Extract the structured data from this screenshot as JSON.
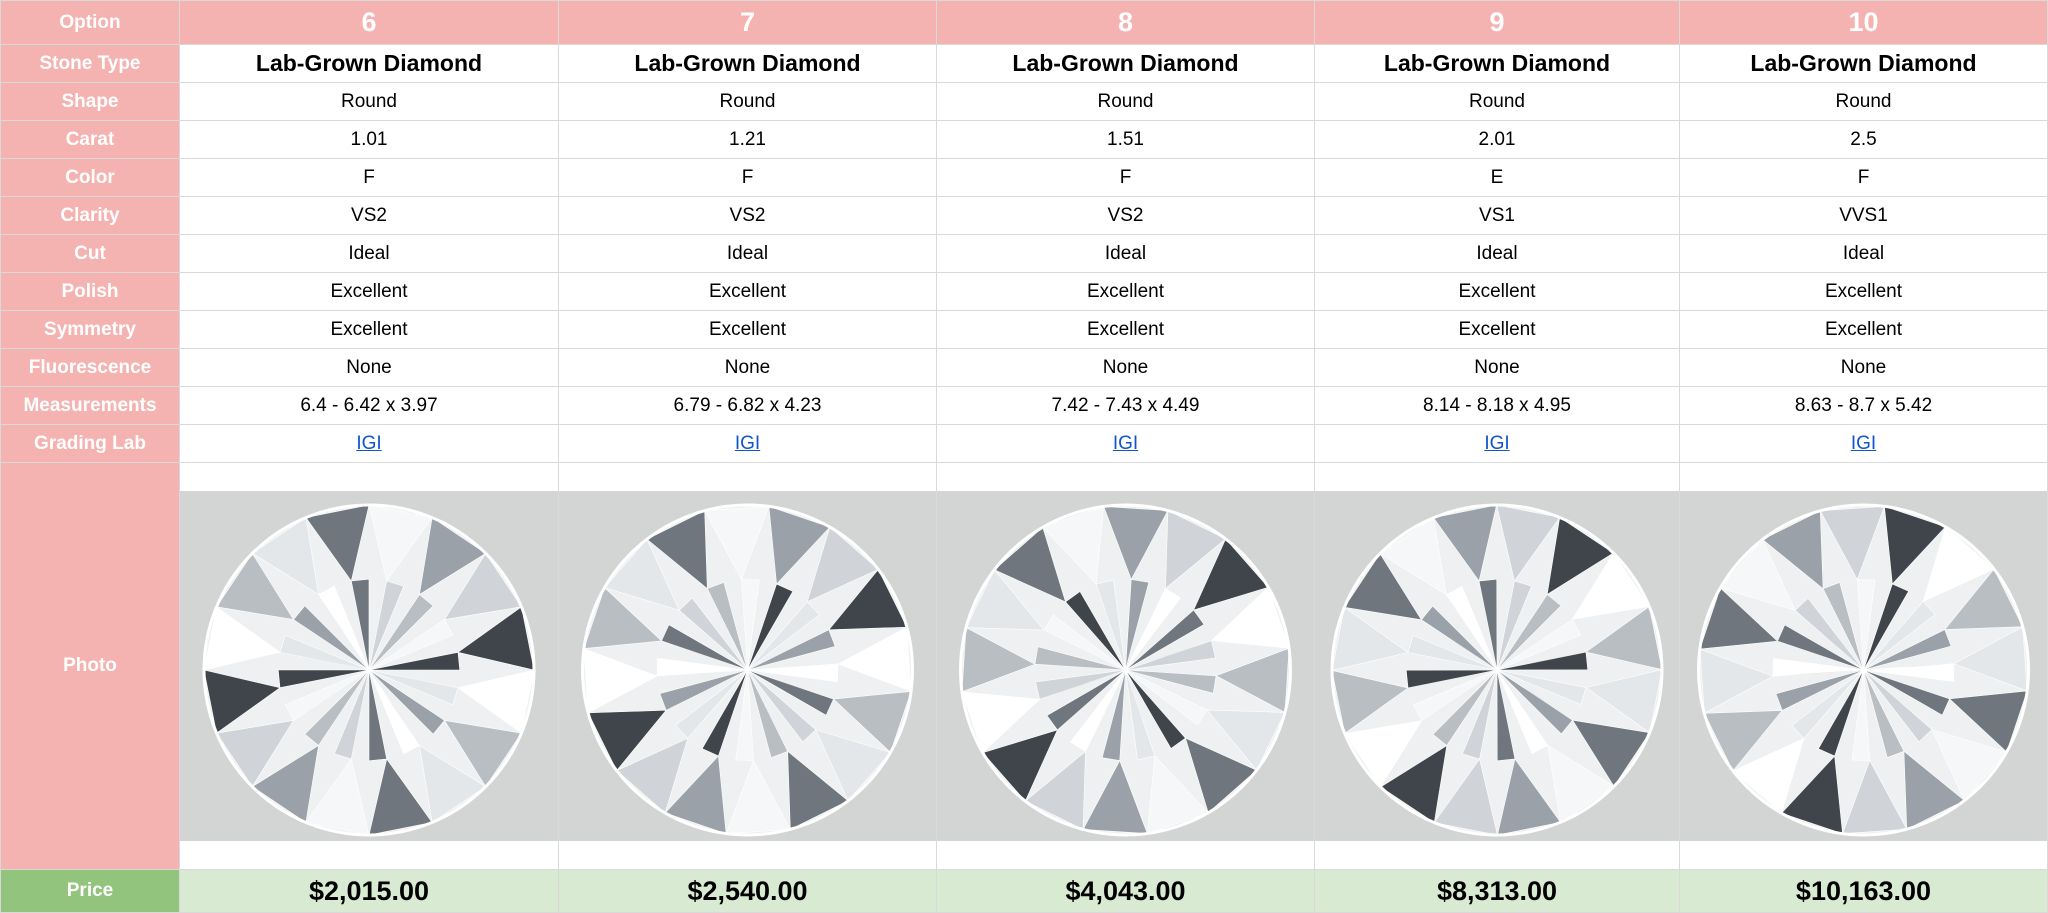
{
  "labels": {
    "option": "Option",
    "stone_type": "Stone Type",
    "shape": "Shape",
    "carat": "Carat",
    "color": "Color",
    "clarity": "Clarity",
    "cut": "Cut",
    "polish": "Polish",
    "symmetry": "Symmetry",
    "fluorescence": "Fluorescence",
    "measurements": "Measurements",
    "grading_lab": "Grading Lab",
    "photo": "Photo",
    "price": "Price"
  },
  "colors": {
    "label_bg": "#f4b3b0",
    "price_label_bg": "#93c47d",
    "price_row_bg": "#d9ead3",
    "link": "#1155cc"
  },
  "options": [
    {
      "option": "6",
      "stone_type": "Lab-Grown Diamond",
      "shape": "Round",
      "carat": "1.01",
      "color": "F",
      "clarity": "VS2",
      "cut": "Ideal",
      "polish": "Excellent",
      "symmetry": "Excellent",
      "fluorescence": "None",
      "measurements": "6.4 - 6.42 x 3.97",
      "grading_lab": "IGI",
      "photo_icon": "diamond-photo",
      "price": "$2,015.00"
    },
    {
      "option": "7",
      "stone_type": "Lab-Grown Diamond",
      "shape": "Round",
      "carat": "1.21",
      "color": "F",
      "clarity": "VS2",
      "cut": "Ideal",
      "polish": "Excellent",
      "symmetry": "Excellent",
      "fluorescence": "None",
      "measurements": "6.79 - 6.82 x 4.23",
      "grading_lab": "IGI",
      "photo_icon": "diamond-photo",
      "price": "$2,540.00"
    },
    {
      "option": "8",
      "stone_type": "Lab-Grown Diamond",
      "shape": "Round",
      "carat": "1.51",
      "color": "F",
      "clarity": "VS2",
      "cut": "Ideal",
      "polish": "Excellent",
      "symmetry": "Excellent",
      "fluorescence": "None",
      "measurements": "7.42 - 7.43 x 4.49",
      "grading_lab": "IGI",
      "photo_icon": "diamond-photo",
      "price": "$4,043.00"
    },
    {
      "option": "9",
      "stone_type": "Lab-Grown Diamond",
      "shape": "Round",
      "carat": "2.01",
      "color": "E",
      "clarity": "VS1",
      "cut": "Ideal",
      "polish": "Excellent",
      "symmetry": "Excellent",
      "fluorescence": "None",
      "measurements": "8.14 - 8.18 x 4.95",
      "grading_lab": "IGI",
      "photo_icon": "diamond-photo",
      "price": "$8,313.00"
    },
    {
      "option": "10",
      "stone_type": "Lab-Grown Diamond",
      "shape": "Round",
      "carat": "2.5",
      "color": "F",
      "clarity": "VVS1",
      "cut": "Ideal",
      "polish": "Excellent",
      "symmetry": "Excellent",
      "fluorescence": "None",
      "measurements": "8.63 - 8.7 x 5.42",
      "grading_lab": "IGI",
      "photo_icon": "diamond-photo",
      "price": "$10,163.00"
    }
  ]
}
